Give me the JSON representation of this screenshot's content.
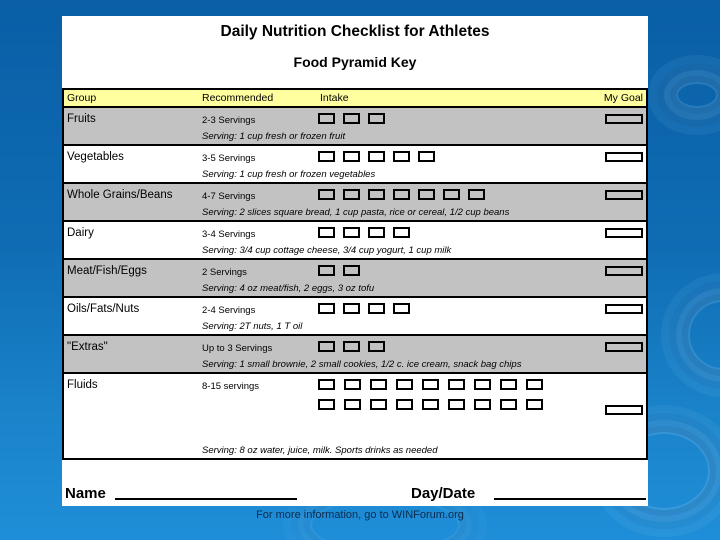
{
  "slide": {
    "title": "Daily Nutrition Checklist for Athletes",
    "subtitle": "Food Pyramid Key",
    "name_label": "Name",
    "daydate_label": "Day/Date",
    "footer": "For more information, go to WINForum.org"
  },
  "colors": {
    "background_top": "#0a5fa6",
    "background_bottom": "#1f8ed8",
    "page": "#ffffff",
    "header_band": "#ffffa0",
    "shaded_row": "#c2c2c2",
    "border": "#000000",
    "footer_text": "#0a2c4e"
  },
  "table": {
    "headers": [
      "Group",
      "Recommended",
      "Intake",
      "My Goal"
    ],
    "rows": [
      {
        "group": "Fruits",
        "recommended": "2-3 Servings",
        "box_rows": [
          3
        ],
        "serving": "Serving: 1 cup fresh or frozen fruit",
        "shaded": true
      },
      {
        "group": "Vegetables",
        "recommended": "3-5 Servings",
        "box_rows": [
          5
        ],
        "serving": "Serving: 1 cup fresh or frozen vegetables",
        "shaded": false
      },
      {
        "group": "Whole Grains/Beans",
        "recommended": "4-7 Servings",
        "box_rows": [
          7
        ],
        "serving": "Serving: 2 slices square bread, 1 cup pasta, rice or cereal, 1/2 cup beans",
        "shaded": true
      },
      {
        "group": "Dairy",
        "recommended": "3-4 Servings",
        "box_rows": [
          4
        ],
        "serving": "Serving: 3/4 cup cottage cheese, 3/4 cup yogurt, 1 cup milk",
        "shaded": false
      },
      {
        "group": "Meat/Fish/Eggs",
        "recommended": "2 Servings",
        "box_rows": [
          2
        ],
        "serving": "Serving: 4 oz meat/fish, 2 eggs, 3 oz tofu",
        "shaded": true
      },
      {
        "group": "Oils/Fats/Nuts",
        "recommended": "2-4 Servings",
        "box_rows": [
          4
        ],
        "serving": "Serving: 2T nuts, 1 T oil",
        "shaded": false
      },
      {
        "group": "\"Extras\"",
        "recommended": "Up to 3 Servings",
        "box_rows": [
          3
        ],
        "serving": "Serving: 1 small brownie, 2 small cookies, 1/2 c. ice cream, snack bag chips",
        "shaded": true
      },
      {
        "group": "Fluids",
        "recommended": "8-15 servings",
        "box_rows": [
          9,
          9
        ],
        "serving": "Serving: 8 oz water, juice, milk.  Sports drinks as needed",
        "shaded": false
      }
    ]
  }
}
